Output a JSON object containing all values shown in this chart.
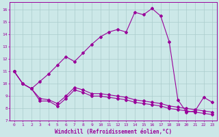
{
  "xlabel": "Windchill (Refroidissement éolien,°C)",
  "background_color": "#cce8e8",
  "grid_color": "#aacccc",
  "line_color": "#990099",
  "xlim": [
    -0.5,
    23.5
  ],
  "ylim": [
    7,
    16.6
  ],
  "yticks": [
    7,
    8,
    9,
    10,
    11,
    12,
    13,
    14,
    15,
    16
  ],
  "xticks": [
    0,
    1,
    2,
    3,
    4,
    5,
    6,
    7,
    8,
    9,
    10,
    11,
    12,
    13,
    14,
    15,
    16,
    17,
    18,
    19,
    20,
    21,
    22,
    23
  ],
  "series_main": {
    "x": [
      0,
      1,
      2,
      3,
      4,
      5,
      6,
      7,
      8,
      9,
      10,
      11,
      12,
      13,
      14,
      15,
      16,
      17,
      18,
      19,
      20,
      21,
      22,
      23
    ],
    "y": [
      11.0,
      10.0,
      9.6,
      10.2,
      10.8,
      11.5,
      12.2,
      11.8,
      12.5,
      13.2,
      13.8,
      14.2,
      14.4,
      14.2,
      15.8,
      15.6,
      16.1,
      15.5,
      13.4,
      8.7,
      7.7,
      7.8,
      8.9,
      8.5
    ]
  },
  "series_flat1": {
    "x": [
      0,
      1,
      2,
      3,
      4,
      5,
      6,
      7,
      8,
      9,
      10,
      11,
      12,
      13,
      14,
      15,
      16,
      17,
      18,
      19,
      20,
      21,
      22,
      23
    ],
    "y": [
      11.0,
      10.0,
      9.6,
      8.6,
      8.6,
      8.2,
      8.8,
      9.5,
      9.3,
      9.0,
      9.0,
      8.9,
      8.8,
      8.7,
      8.5,
      8.4,
      8.3,
      8.2,
      8.0,
      7.9,
      7.8,
      7.7,
      7.6,
      7.5
    ]
  },
  "series_flat2": {
    "x": [
      0,
      1,
      2,
      3,
      4,
      5,
      6,
      7,
      8,
      9,
      10,
      11,
      12,
      13,
      14,
      15,
      16,
      17,
      18,
      19,
      20,
      21,
      22,
      23
    ],
    "y": [
      11.0,
      10.0,
      9.6,
      8.8,
      8.7,
      8.4,
      9.0,
      9.7,
      9.5,
      9.2,
      9.2,
      9.1,
      9.0,
      8.9,
      8.7,
      8.6,
      8.5,
      8.4,
      8.2,
      8.1,
      8.0,
      7.9,
      7.8,
      7.7
    ]
  }
}
